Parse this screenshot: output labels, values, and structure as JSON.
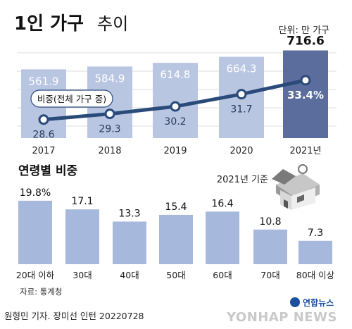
{
  "header": {
    "title_bold": "1인 가구",
    "title_light": "추이",
    "unit": "단위: 만 가구"
  },
  "colors": {
    "bar": "#b9c6e2",
    "bar_highlight": "#5a6d9c",
    "line": "#2a4a7a",
    "age_bar": "#a6b8dc",
    "grid": "#dddddd"
  },
  "chart_data": [
    {
      "type": "bar",
      "categories": [
        "2017",
        "2018",
        "2019",
        "2020",
        "2021년"
      ],
      "values": [
        561.9,
        584.9,
        614.8,
        664.3,
        716.6
      ],
      "value_labels": [
        "561.9",
        "584.9",
        "614.8",
        "664.3",
        "716.6"
      ],
      "ylim": [
        0,
        760
      ]
    },
    {
      "type": "line",
      "categories": [
        "2017",
        "2018",
        "2019",
        "2020",
        "2021년"
      ],
      "series": [
        {
          "name": "비중(전체 가구 중)",
          "values": [
            28.6,
            29.3,
            30.2,
            31.7,
            33.4
          ],
          "value_labels": [
            "28.6",
            "29.3",
            "30.2",
            "31.7",
            "33.4%"
          ]
        }
      ],
      "ylim": [
        26,
        37
      ]
    },
    {
      "type": "bar",
      "title": "연령별 비중",
      "annotation": "2021년 기준",
      "categories": [
        "20대 이하",
        "30대",
        "40대",
        "50대",
        "60대",
        "70대",
        "80대 이상"
      ],
      "values": [
        19.8,
        17.1,
        13.3,
        15.4,
        16.4,
        10.8,
        7.3
      ],
      "value_labels": [
        "19.8%",
        "17.1",
        "13.3",
        "15.4",
        "16.4",
        "10.8",
        "7.3"
      ],
      "ylim": [
        0,
        20
      ]
    }
  ],
  "source": "자료: 통계청",
  "credit": "원형민 기자. 장미선 인턴  20220728",
  "logo": {
    "korean": "연합뉴스",
    "english": "YONHAP NEWS"
  }
}
